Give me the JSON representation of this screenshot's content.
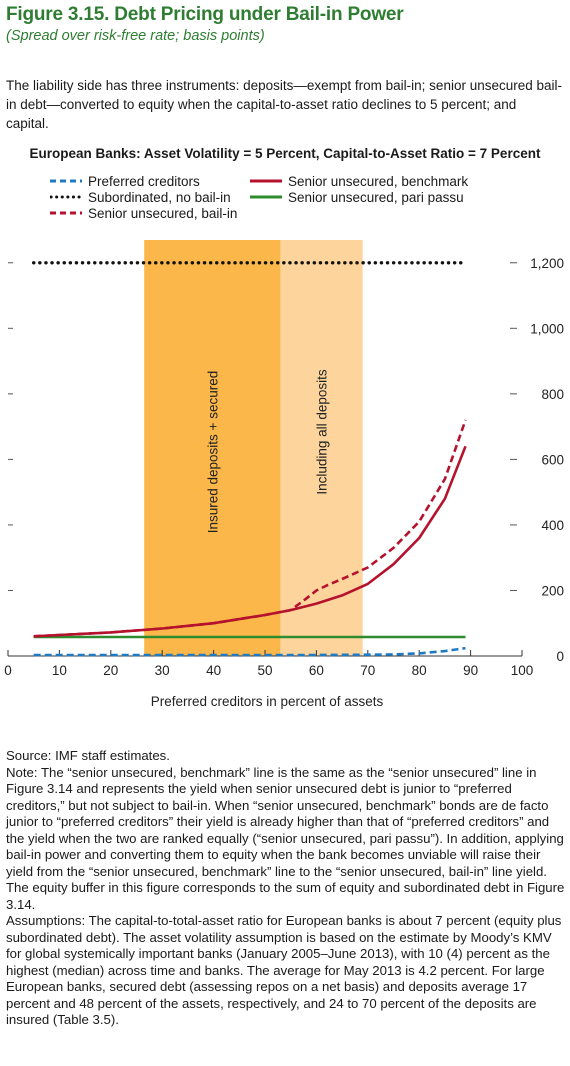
{
  "figure": {
    "title": "Figure 3.15.  Debt Pricing under Bail-in Power",
    "subtitle": "(Spread over risk-free rate; basis points)"
  },
  "intro_text": "The liability side has three instruments: deposits—exempt from bail-in; senior unsecured bail-in debt—converted to equity when the capital-to-asset ratio declines to 5 percent; and capital.",
  "chart_data": {
    "type": "line",
    "title": "European Banks: Asset Volatility = 5 Percent, Capital-to-Asset Ratio = 7 Percent",
    "xlabel": "Preferred creditors in percent of assets",
    "ylabel": "",
    "xlim": [
      0,
      100
    ],
    "ylim": [
      0,
      1300
    ],
    "x_ticks": [
      "0",
      "10",
      "20",
      "30",
      "40",
      "50",
      "60",
      "70",
      "80",
      "90",
      "100"
    ],
    "y_ticks": [
      "0",
      "200",
      "400",
      "600",
      "800",
      "1,000",
      "1,200"
    ],
    "y_tick_values": [
      0,
      200,
      400,
      600,
      800,
      1000,
      1200
    ],
    "shaded_regions": [
      {
        "label": "Insured deposits + secured",
        "x_start": 26.5,
        "x_end": 53,
        "color": "#fbb749"
      },
      {
        "label": "Including all deposits",
        "x_start": 53,
        "x_end": 69,
        "color": "#fdd49c"
      }
    ],
    "series": [
      {
        "name": "Preferred creditors",
        "style": "dashed",
        "color": "#1f7ac4",
        "x": [
          5,
          20,
          40,
          60,
          70,
          75,
          80,
          85,
          89
        ],
        "y": [
          3,
          3,
          3,
          3,
          4,
          5,
          8,
          15,
          24
        ]
      },
      {
        "name": "Subordinated, no bail-in",
        "style": "dotted",
        "color": "#111111",
        "x": [
          5,
          89
        ],
        "y": [
          1200,
          1200
        ]
      },
      {
        "name": "Senior unsecured, bail-in",
        "style": "dashed",
        "color": "#b5122d",
        "x": [
          5,
          10,
          20,
          30,
          40,
          50,
          55,
          58,
          60,
          62,
          65,
          70,
          75,
          80,
          85,
          89
        ],
        "y": [
          60,
          64,
          72,
          84,
          100,
          125,
          140,
          175,
          200,
          215,
          235,
          270,
          330,
          410,
          540,
          720
        ]
      },
      {
        "name": "Senior unsecured, benchmark",
        "style": "solid",
        "color": "#b5122d",
        "x": [
          5,
          10,
          20,
          30,
          40,
          50,
          55,
          60,
          65,
          70,
          75,
          80,
          85,
          89
        ],
        "y": [
          60,
          64,
          72,
          84,
          100,
          125,
          140,
          160,
          185,
          220,
          280,
          360,
          480,
          640
        ]
      },
      {
        "name": "Senior unsecured, pari passu",
        "style": "solid",
        "color": "#2e8b2e",
        "x": [
          5,
          89
        ],
        "y": [
          58,
          58
        ]
      }
    ],
    "legend_placement": "top"
  },
  "notes": {
    "source": "Source: IMF staff estimates.",
    "note": "Note: The “senior unsecured, benchmark” line is the same as the “senior unsecured” line in Figure 3.14 and represents the yield when senior unsecured debt is junior to “preferred creditors,” but not subject to bail-in. When “senior unsecured, benchmark” bonds are de facto junior to “preferred creditors” their yield is already higher than that of “preferred creditors” and the yield when the two are ranked equally (“senior unsecured, pari passu”). In addition, applying bail-in power and converting them to equity when the bank becomes unviable will raise their yield from the “senior unsecured, benchmark” line to the “senior unsecured, bail-in” line yield. The equity buffer in this figure corresponds to the sum of equity and subordinated debt in Figure 3.14.",
    "assumptions": "Assumptions: The capital-to-total-asset ratio for European banks is about 7 percent (equity plus subordinated debt). The asset volatility assumption is based on the estimate by Moody’s KMV for global systemically important banks (January 2005–June 2013), with 10 (4) percent as the highest (median) across time and banks. The average for May 2013 is 4.2 percent. For large European banks, secured debt (assessing repos on a net basis) and deposits average 17 percent and 48 percent of the assets, respectively, and 24 to 70 percent of the deposits are insured (Table 3.5)."
  }
}
